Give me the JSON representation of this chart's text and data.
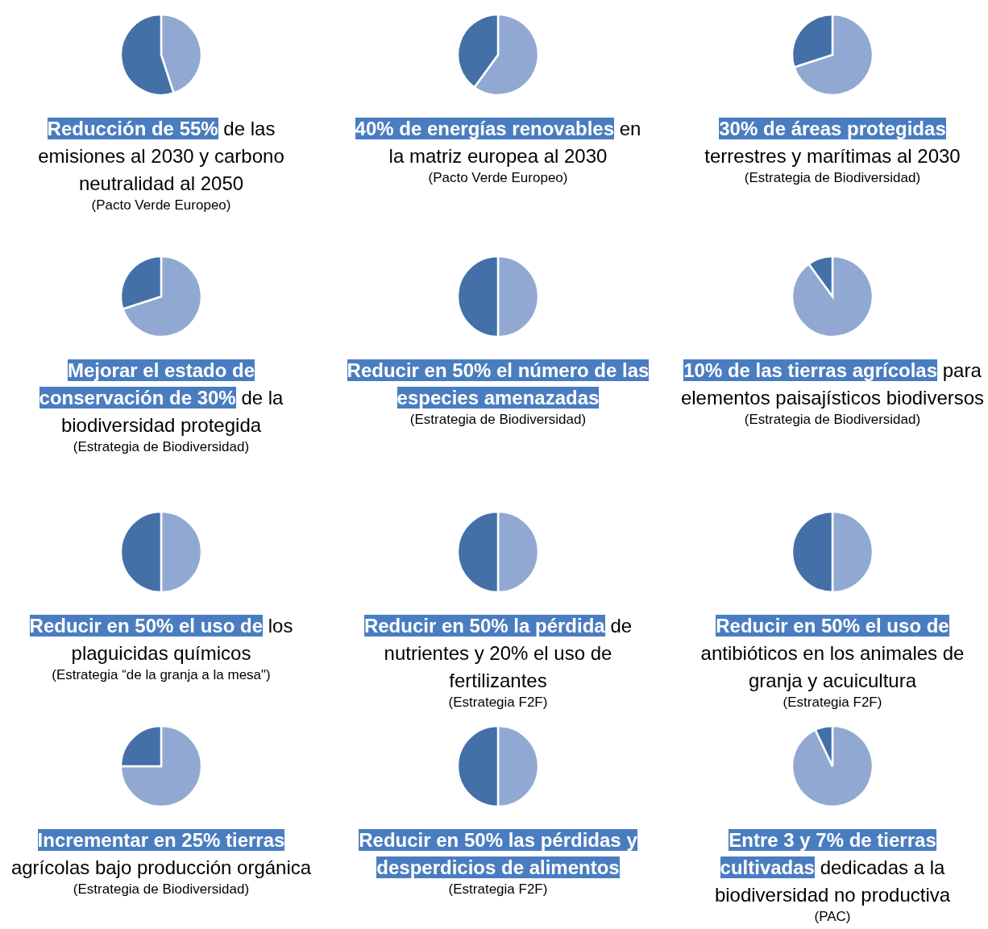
{
  "chart_data": [
    {
      "type": "pie",
      "title": "Reducción de 55%",
      "subtitle": "de las emisiones al 2030 y carbono neutralidad al 2050",
      "annotations": [
        "(Pacto Verde Europeo)"
      ],
      "categories": [
        null,
        null
      ],
      "values": [
        45,
        55
      ],
      "colors": [
        "#91a9d2",
        "#4470a8"
      ]
    },
    {
      "type": "pie",
      "title": "40% de energías renovables",
      "subtitle": "en la matriz europea al 2030",
      "annotations": [
        "(Pacto Verde Europeo)"
      ],
      "categories": [
        null,
        null
      ],
      "values": [
        60,
        40
      ],
      "colors": [
        "#91a9d2",
        "#4470a8"
      ]
    },
    {
      "type": "pie",
      "title": "30% de áreas protegidas",
      "subtitle": "terrestres y marítimas al 2030",
      "annotations": [
        "(Estrategia de Biodiversidad)"
      ],
      "categories": [
        null,
        null
      ],
      "values": [
        70,
        30
      ],
      "colors": [
        "#91a9d2",
        "#4470a8"
      ]
    },
    {
      "type": "pie",
      "title": "Mejorar el estado de conservación de 30%",
      "subtitle": "de la biodiversidad protegida",
      "annotations": [
        "(Estrategia de Biodiversidad)"
      ],
      "categories": [
        null,
        null
      ],
      "values": [
        70,
        30
      ],
      "colors": [
        "#91a9d2",
        "#4470a8"
      ]
    },
    {
      "type": "pie",
      "title": "Reducir en 50% el número de las especies amenazadas",
      "annotations": [
        "(Estrategia de Biodiversidad)"
      ],
      "categories": [
        null,
        null
      ],
      "values": [
        50,
        50
      ],
      "colors": [
        "#91a9d2",
        "#4470a8"
      ]
    },
    {
      "type": "pie",
      "title": "10% de las tierras agrícolas",
      "subtitle": "para elementos paisajísticos biodiversos",
      "annotations": [
        "(Estrategia de Biodiversidad)"
      ],
      "categories": [
        null,
        null
      ],
      "values": [
        90,
        10
      ],
      "colors": [
        "#91a9d2",
        "#4470a8"
      ]
    },
    {
      "type": "pie",
      "title": "Reducir en 50% el uso de",
      "subtitle": "los plaguicidas químicos",
      "annotations": [
        "(Estrategia “de la granja a la mesa\")"
      ],
      "categories": [
        null,
        null
      ],
      "values": [
        50,
        50
      ],
      "colors": [
        "#91a9d2",
        "#4470a8"
      ]
    },
    {
      "type": "pie",
      "title": "Reducir en 50% la pérdida",
      "subtitle": "de nutrientes y 20% el uso de fertilizantes",
      "annotations": [
        "(Estrategia F2F)"
      ],
      "categories": [
        null,
        null
      ],
      "values": [
        50,
        50
      ],
      "colors": [
        "#91a9d2",
        "#4470a8"
      ]
    },
    {
      "type": "pie",
      "title": "Reducir en 50% el uso de",
      "subtitle": "antibióticos en los animales de granja y acuicultura",
      "annotations": [
        "(Estrategia F2F)"
      ],
      "categories": [
        null,
        null
      ],
      "values": [
        50,
        50
      ],
      "colors": [
        "#91a9d2",
        "#4470a8"
      ]
    },
    {
      "type": "pie",
      "title": "Incrementar en 25% tierras",
      "subtitle": "agrícolas bajo producción orgánica",
      "annotations": [
        "(Estrategia de Biodiversidad)"
      ],
      "categories": [
        null,
        null
      ],
      "values": [
        75,
        25
      ],
      "colors": [
        "#91a9d2",
        "#4470a8"
      ]
    },
    {
      "type": "pie",
      "title": "Reducir en 50% las pérdidas y desperdicios de alimentos",
      "annotations": [
        "(Estrategia F2F)"
      ],
      "categories": [
        null,
        null
      ],
      "values": [
        50,
        50
      ],
      "colors": [
        "#91a9d2",
        "#4470a8"
      ]
    },
    {
      "type": "pie",
      "title": "Entre 3 y 7% de tierras cultivadas",
      "subtitle": "dedicadas a la biodiversidad no productiva",
      "annotations": [
        "(PAC)"
      ],
      "categories": [
        null,
        null
      ],
      "values": [
        93,
        7
      ],
      "colors": [
        "#91a9d2",
        "#4470a8"
      ]
    }
  ]
}
